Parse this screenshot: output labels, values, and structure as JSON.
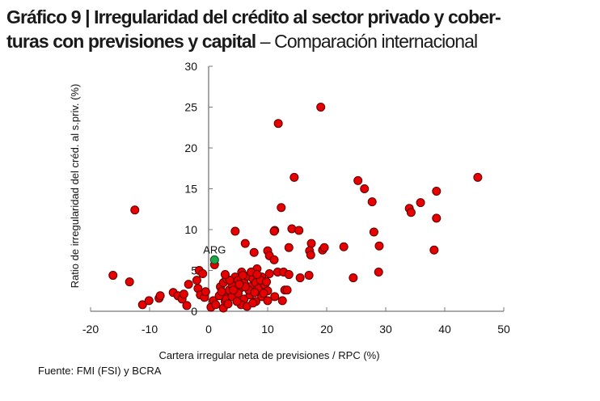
{
  "title": {
    "bold_line1": "Gráfico 9 | Irregularidad del crédito al sector privado y cober-",
    "bold_line2": "turas con previsiones y capital",
    "normal": " – Comparación internacional"
  },
  "source": "Fuente: FMI (FSI) y BCRA",
  "chart_data": {
    "type": "scatter",
    "xlabel": "Cartera irregular neta de previsiones / RPC (%)",
    "ylabel": "Ratio de irregularidad del créd. al s.priv. (%)",
    "xlim": [
      -20,
      50
    ],
    "ylim": [
      0,
      30
    ],
    "xticks": [
      -20,
      -10,
      0,
      10,
      20,
      30,
      40,
      50
    ],
    "yticks": [
      0,
      5,
      10,
      15,
      20,
      25,
      30
    ],
    "grid": false,
    "colors": {
      "points": "#e60000",
      "highlight": "#1fa64a",
      "outline": "#5a0000"
    },
    "highlight": {
      "label": "ARG",
      "x": 1.0,
      "y": 6.3
    },
    "points": [
      [
        -12.5,
        12.4
      ],
      [
        -16.2,
        4.4
      ],
      [
        -13.4,
        3.6
      ],
      [
        -11.2,
        0.8
      ],
      [
        -10.1,
        1.3
      ],
      [
        -8.4,
        1.6
      ],
      [
        -8.2,
        1.9
      ],
      [
        -6,
        2.3
      ],
      [
        -5.2,
        1.9
      ],
      [
        -4.5,
        1.5
      ],
      [
        -4.2,
        2.1
      ],
      [
        -3.7,
        0.7
      ],
      [
        -3.4,
        3.3
      ],
      [
        -1.6,
        5
      ],
      [
        -1,
        4.6
      ],
      [
        -1.8,
        2.8
      ],
      [
        -2,
        3.8
      ],
      [
        -1.4,
        2
      ],
      [
        -0.7,
        1.7
      ],
      [
        -0.5,
        2.4
      ],
      [
        1,
        5.7
      ],
      [
        0.4,
        0.5
      ],
      [
        0.8,
        1.3
      ],
      [
        1.2,
        0.8
      ],
      [
        2.5,
        0.4
      ],
      [
        2.8,
        1.2
      ],
      [
        3.2,
        2.1
      ],
      [
        1.8,
        1.9
      ],
      [
        19,
        25
      ],
      [
        11.8,
        23
      ],
      [
        14.5,
        16.4
      ],
      [
        12.3,
        12.7
      ],
      [
        11.2,
        9.9
      ],
      [
        14.1,
        10.1
      ],
      [
        15.3,
        9.9
      ],
      [
        13.6,
        7.8
      ],
      [
        17.4,
        8.3
      ],
      [
        17.1,
        7.4
      ],
      [
        17.3,
        6.9
      ],
      [
        19.3,
        7.5
      ],
      [
        19.6,
        7.8
      ],
      [
        22.9,
        7.9
      ],
      [
        25.3,
        16
      ],
      [
        26.4,
        15
      ],
      [
        27.7,
        13.4
      ],
      [
        28,
        9.7
      ],
      [
        28.9,
        8
      ],
      [
        28.8,
        4.8
      ],
      [
        24.5,
        4.1
      ],
      [
        34,
        12.6
      ],
      [
        34.3,
        12.1
      ],
      [
        35.9,
        13.3
      ],
      [
        38.6,
        14.7
      ],
      [
        38.6,
        11.4
      ],
      [
        38.2,
        7.5
      ],
      [
        45.6,
        16.4
      ],
      [
        17,
        4.4
      ],
      [
        15.5,
        4.1
      ],
      [
        4.5,
        9.8
      ],
      [
        6.2,
        8.3
      ],
      [
        7.7,
        7.2
      ],
      [
        10,
        7.4
      ],
      [
        10.3,
        6.8
      ],
      [
        11.1,
        6.3
      ],
      [
        11.1,
        9.8
      ],
      [
        8.2,
        5.2
      ],
      [
        5.6,
        4.8
      ],
      [
        10.3,
        4.6
      ],
      [
        11.7,
        4.8
      ],
      [
        12.7,
        4.8
      ],
      [
        13.6,
        4.5
      ],
      [
        11.2,
        1.8
      ],
      [
        12.5,
        1.3
      ],
      [
        12.9,
        2.6
      ],
      [
        13.3,
        2.6
      ],
      [
        2,
        3
      ],
      [
        2.5,
        3.5
      ],
      [
        3,
        4
      ],
      [
        3.5,
        2.6
      ],
      [
        4,
        3.2
      ],
      [
        4.5,
        4.2
      ],
      [
        5,
        3.8
      ],
      [
        5.5,
        2.9
      ],
      [
        6,
        3.5
      ],
      [
        6.5,
        4.3
      ],
      [
        7,
        3
      ],
      [
        7.5,
        4
      ],
      [
        8,
        3.5
      ],
      [
        8.5,
        2.8
      ],
      [
        9,
        4.2
      ],
      [
        9.5,
        3.2
      ],
      [
        10,
        2.5
      ],
      [
        3,
        1.5
      ],
      [
        4,
        1.8
      ],
      [
        5,
        2.2
      ],
      [
        6,
        1.5
      ],
      [
        7,
        2
      ],
      [
        8,
        1.2
      ],
      [
        9,
        1.8
      ],
      [
        10,
        1.3
      ],
      [
        5.5,
        0.8
      ],
      [
        6.5,
        0.6
      ],
      [
        7.5,
        1
      ],
      [
        4.2,
        2.6
      ],
      [
        5.8,
        4.4
      ],
      [
        7.2,
        4.8
      ],
      [
        8.8,
        3.8
      ],
      [
        3.6,
        3.8
      ],
      [
        6.8,
        2.6
      ],
      [
        9.8,
        3.6
      ],
      [
        2.2,
        2.4
      ],
      [
        4.8,
        1.2
      ],
      [
        8.2,
        4.5
      ],
      [
        6.2,
        3
      ],
      [
        7.8,
        2.3
      ],
      [
        3.3,
        0.9
      ],
      [
        9.3,
        2.2
      ],
      [
        5.2,
        3.3
      ],
      [
        2.8,
        4.5
      ]
    ]
  }
}
